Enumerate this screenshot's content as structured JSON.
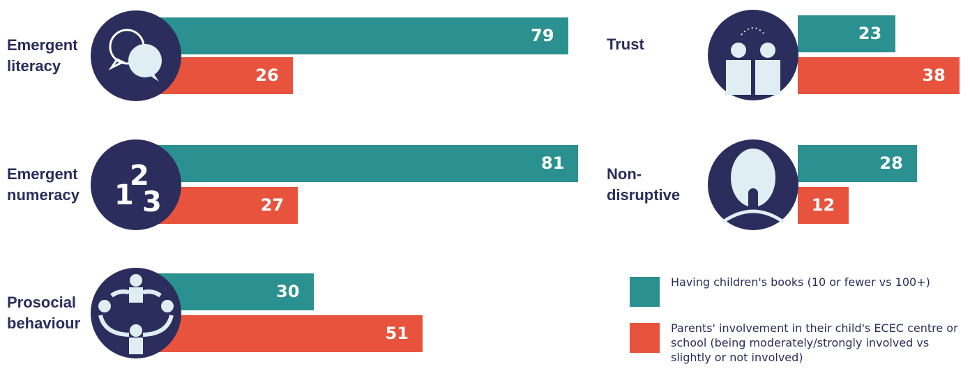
{
  "chart_data": {
    "type": "bar",
    "categories": [
      "Emergent literacy",
      "Emergent numeracy",
      "Prosocial behaviour",
      "Trust",
      "Non-disruptive"
    ],
    "series": [
      {
        "name": "Having children's books (10 or fewer vs 100+)",
        "color": "#2a9090",
        "values": [
          79,
          81,
          30,
          23,
          28
        ]
      },
      {
        "name": "Parents' involvement in their child's ECEC centre or school (being moderately/strongly involved vs slightly or not involved)",
        "color": "#e8533e",
        "values": [
          26,
          27,
          51,
          38,
          12
        ]
      }
    ]
  },
  "icons": {
    "numeracy": [
      "1",
      "2",
      "3"
    ]
  }
}
